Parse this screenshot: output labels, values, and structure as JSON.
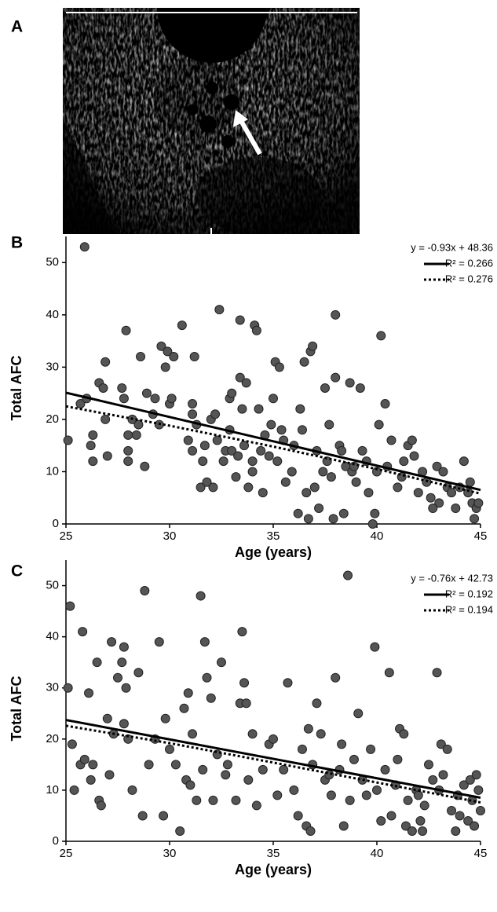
{
  "image_panel": {
    "label": "A"
  },
  "chart_data": [
    {
      "type": "scatter",
      "panel_label": "B",
      "x_label": "Age (years)",
      "y_label": "Total AFC",
      "equation": "y = -0.93x + 48.36",
      "color": "#555555",
      "grid": false,
      "xlim": [
        25,
        45
      ],
      "ylim": [
        0,
        55
      ],
      "xticks": [
        25,
        30,
        35,
        40,
        45
      ],
      "yticks": [
        0,
        10,
        20,
        30,
        40,
        50
      ],
      "x": [
        25.1,
        25.9,
        25.7,
        26.0,
        26.2,
        26.3,
        26.3,
        26.6,
        26.8,
        26.9,
        26.9,
        27.0,
        27.7,
        27.8,
        27.9,
        28.0,
        28.0,
        28.0,
        28.2,
        28.4,
        28.5,
        28.6,
        28.8,
        28.9,
        29.2,
        29.3,
        29.5,
        29.6,
        29.8,
        29.9,
        30.0,
        30.1,
        30.2,
        30.6,
        30.9,
        31.1,
        31.1,
        31.1,
        31.2,
        31.3,
        31.5,
        31.6,
        31.7,
        31.8,
        32.0,
        32.1,
        32.2,
        32.3,
        32.4,
        32.6,
        32.7,
        32.9,
        32.9,
        33.0,
        33.0,
        33.2,
        33.3,
        33.4,
        33.4,
        33.5,
        33.6,
        33.7,
        33.8,
        34.0,
        34.0,
        34.1,
        34.2,
        34.3,
        34.4,
        34.5,
        34.6,
        34.8,
        34.9,
        35.0,
        35.1,
        35.2,
        35.3,
        35.4,
        35.5,
        35.6,
        35.9,
        36.0,
        36.2,
        36.3,
        36.4,
        36.5,
        36.6,
        36.7,
        36.8,
        36.9,
        37.0,
        37.1,
        37.2,
        37.4,
        37.5,
        37.6,
        37.7,
        37.8,
        37.9,
        38.0,
        38.0,
        38.2,
        38.3,
        38.4,
        38.5,
        38.7,
        38.8,
        39.0,
        39.2,
        39.3,
        39.5,
        39.8,
        39.9,
        40.0,
        40.1,
        40.2,
        40.4,
        40.5,
        40.7,
        41.0,
        41.3,
        41.5,
        41.7,
        41.8,
        42.0,
        42.2,
        42.4,
        42.6,
        42.9,
        43.2,
        43.4,
        43.6,
        43.8,
        44.0,
        44.2,
        44.4,
        44.6,
        44.8,
        44.9,
        44.7,
        44.5,
        43.0,
        42.7,
        41.2,
        39.6,
        38.9
      ],
      "values": [
        16,
        53,
        23,
        24,
        15,
        12,
        17,
        27,
        26,
        20,
        31,
        13,
        26,
        24,
        37,
        17,
        14,
        12,
        20,
        17,
        19,
        32,
        11,
        25,
        21,
        24,
        19,
        34,
        30,
        33,
        23,
        24,
        32,
        38,
        16,
        23,
        21,
        14,
        32,
        19,
        7,
        12,
        15,
        8,
        20,
        7,
        21,
        16,
        41,
        12,
        14,
        24,
        18,
        25,
        14,
        9,
        13,
        28,
        39,
        22,
        15,
        27,
        7,
        10,
        12,
        38,
        37,
        22,
        14,
        6,
        17,
        13,
        19,
        24,
        31,
        12,
        30,
        18,
        16,
        8,
        10,
        15,
        2,
        22,
        18,
        31,
        6,
        1,
        33,
        34,
        7,
        14,
        3,
        10,
        26,
        12,
        19,
        9,
        1,
        28,
        40,
        15,
        14,
        2,
        11,
        27,
        10,
        8,
        26,
        14,
        12,
        0,
        2,
        10,
        19,
        36,
        23,
        11,
        16,
        7,
        12,
        15,
        16,
        13,
        6,
        10,
        8,
        5,
        11,
        10,
        7,
        6,
        3,
        7,
        12,
        6,
        4,
        3,
        4,
        1,
        8,
        4,
        3,
        9,
        6,
        11
      ],
      "fits": [
        {
          "label": "R² = 0.266",
          "style": "solid",
          "slope": -0.93,
          "intercept": 48.36
        },
        {
          "label": "R² = 0.276",
          "style": "dotted",
          "x": [
            25,
            30,
            35,
            40,
            45
          ],
          "values": [
            22.5,
            18.8,
            14.8,
            10.5,
            5.8
          ]
        }
      ]
    },
    {
      "type": "scatter",
      "panel_label": "C",
      "x_label": "Age (years)",
      "y_label": "Total AFC",
      "equation": "y = -0.76x + 42.73",
      "color": "#555555",
      "grid": false,
      "xlim": [
        25,
        45
      ],
      "ylim": [
        0,
        55
      ],
      "xticks": [
        25,
        30,
        35,
        40,
        45
      ],
      "yticks": [
        0,
        10,
        20,
        30,
        40,
        50
      ],
      "x": [
        25.1,
        25.2,
        25.3,
        25.4,
        25.7,
        25.8,
        25.9,
        26.1,
        26.2,
        26.3,
        26.5,
        26.6,
        26.7,
        27.0,
        27.1,
        27.2,
        27.3,
        27.5,
        27.7,
        27.8,
        27.9,
        27.8,
        28.0,
        28.2,
        28.5,
        28.7,
        28.8,
        29.0,
        29.3,
        29.5,
        29.7,
        29.8,
        30.0,
        30.3,
        30.5,
        30.7,
        30.8,
        30.9,
        31.0,
        31.1,
        31.3,
        31.5,
        31.6,
        31.7,
        31.8,
        32.0,
        32.1,
        32.3,
        32.5,
        32.7,
        32.8,
        33.2,
        33.4,
        33.5,
        33.6,
        33.7,
        33.8,
        34.0,
        34.2,
        34.5,
        34.8,
        35.0,
        35.2,
        35.5,
        35.7,
        36.0,
        36.2,
        36.4,
        36.6,
        36.7,
        36.8,
        36.9,
        37.1,
        37.3,
        37.5,
        37.7,
        37.8,
        38.0,
        38.2,
        38.3,
        38.4,
        38.6,
        38.7,
        38.9,
        39.1,
        39.3,
        39.5,
        39.7,
        39.9,
        40.0,
        40.2,
        40.4,
        40.6,
        40.7,
        40.9,
        41.0,
        41.1,
        41.3,
        41.4,
        41.5,
        41.7,
        41.9,
        42.0,
        42.1,
        42.3,
        42.5,
        42.7,
        42.9,
        43.0,
        43.1,
        43.2,
        43.4,
        43.6,
        43.8,
        44.0,
        44.2,
        44.4,
        44.5,
        44.6,
        44.8,
        44.9,
        45.0,
        44.7,
        43.9,
        42.2
      ],
      "values": [
        30,
        46,
        19,
        10,
        15,
        41,
        16,
        29,
        12,
        15,
        35,
        8,
        7,
        24,
        13,
        39,
        21,
        32,
        35,
        38,
        30,
        23,
        20,
        10,
        33,
        5,
        49,
        15,
        20,
        39,
        5,
        24,
        18,
        15,
        2,
        26,
        12,
        29,
        11,
        21,
        8,
        48,
        14,
        39,
        32,
        28,
        8,
        17,
        35,
        13,
        15,
        8,
        27,
        41,
        31,
        27,
        12,
        21,
        7,
        14,
        19,
        20,
        9,
        14,
        31,
        10,
        5,
        18,
        3,
        22,
        2,
        15,
        27,
        21,
        12,
        13,
        9,
        32,
        14,
        19,
        3,
        52,
        8,
        16,
        25,
        12,
        9,
        18,
        38,
        10,
        4,
        14,
        33,
        5,
        11,
        16,
        22,
        21,
        3,
        8,
        2,
        10,
        9,
        4,
        7,
        15,
        12,
        33,
        10,
        19,
        13,
        18,
        6,
        2,
        5,
        11,
        4,
        12,
        8,
        13,
        10,
        6,
        3,
        9,
        2
      ],
      "fits": [
        {
          "label": "R² = 0.192",
          "style": "solid",
          "slope": -0.76,
          "intercept": 42.73
        },
        {
          "label": "R² = 0.194",
          "style": "dotted",
          "x": [
            25,
            30,
            35,
            40,
            45
          ],
          "values": [
            22.6,
            19.2,
            15.4,
            11.5,
            7.6
          ]
        }
      ]
    }
  ]
}
